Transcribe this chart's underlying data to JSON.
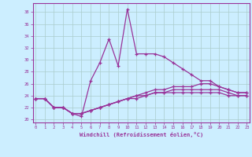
{
  "xlabel": "Windchill (Refroidissement éolien,°C)",
  "bg_color": "#cceeff",
  "grid_color": "#aacccc",
  "line_color": "#993399",
  "hours": [
    0,
    1,
    2,
    3,
    4,
    5,
    6,
    7,
    8,
    9,
    10,
    11,
    12,
    13,
    14,
    15,
    16,
    17,
    18,
    19,
    20,
    21,
    22,
    23
  ],
  "series1": [
    23.5,
    23.5,
    22.0,
    22.0,
    21.0,
    20.5,
    26.5,
    29.5,
    33.5,
    29.0,
    38.5,
    31.0,
    31.0,
    31.0,
    30.5,
    29.5,
    28.5,
    27.5,
    26.5,
    26.5,
    25.5,
    25.0,
    24.5,
    24.5
  ],
  "series2": [
    23.5,
    23.5,
    22.0,
    22.0,
    21.0,
    21.0,
    21.5,
    22.0,
    22.5,
    23.0,
    23.5,
    24.0,
    24.5,
    25.0,
    25.0,
    25.5,
    25.5,
    25.5,
    26.0,
    26.0,
    25.5,
    25.0,
    24.5,
    24.5
  ],
  "series3": [
    23.5,
    23.5,
    22.0,
    22.0,
    21.0,
    21.0,
    21.5,
    22.0,
    22.5,
    23.0,
    23.5,
    23.5,
    24.0,
    24.5,
    24.5,
    25.0,
    25.0,
    25.0,
    25.0,
    25.0,
    25.0,
    24.5,
    24.0,
    24.0
  ],
  "series4": [
    23.5,
    23.5,
    22.0,
    22.0,
    21.0,
    21.0,
    21.5,
    22.0,
    22.5,
    23.0,
    23.5,
    24.0,
    24.0,
    24.5,
    24.5,
    24.5,
    24.5,
    24.5,
    24.5,
    24.5,
    24.5,
    24.0,
    24.0,
    24.0
  ],
  "ylim": [
    19.5,
    39.5
  ],
  "xlim": [
    -0.3,
    23.3
  ],
  "yticks": [
    20,
    22,
    24,
    26,
    28,
    30,
    32,
    34,
    36,
    38
  ],
  "xticks": [
    0,
    1,
    2,
    3,
    4,
    5,
    6,
    7,
    8,
    9,
    10,
    11,
    12,
    13,
    14,
    15,
    16,
    17,
    18,
    19,
    20,
    21,
    22,
    23
  ]
}
